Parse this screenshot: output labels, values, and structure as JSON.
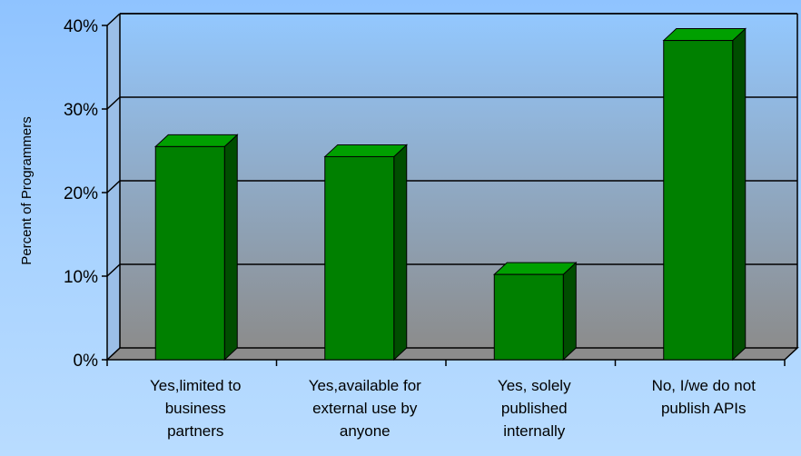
{
  "chart_data": {
    "type": "bar",
    "ylabel": "Percent of Programmers",
    "categories": [
      [
        "Yes,limited to",
        "business",
        "partners"
      ],
      [
        "Yes,available for",
        "external use by",
        "anyone"
      ],
      [
        "Yes, solely",
        "published",
        "internally"
      ],
      [
        "No, I/we do not",
        "publish APIs"
      ]
    ],
    "values": [
      25.5,
      24.3,
      10.2,
      38.2
    ],
    "ylim": [
      0,
      40
    ],
    "yticks": [
      0,
      10,
      20,
      30,
      40
    ],
    "ytick_labels": [
      "0%",
      "10%",
      "20%",
      "30%",
      "40%"
    ],
    "grid": true,
    "colors": {
      "bar_front": "#008000",
      "bar_side": "#004d00",
      "bar_top": "#00a000",
      "plot_top": "#93c8ff",
      "plot_bottom": "#8c8c8c"
    }
  }
}
